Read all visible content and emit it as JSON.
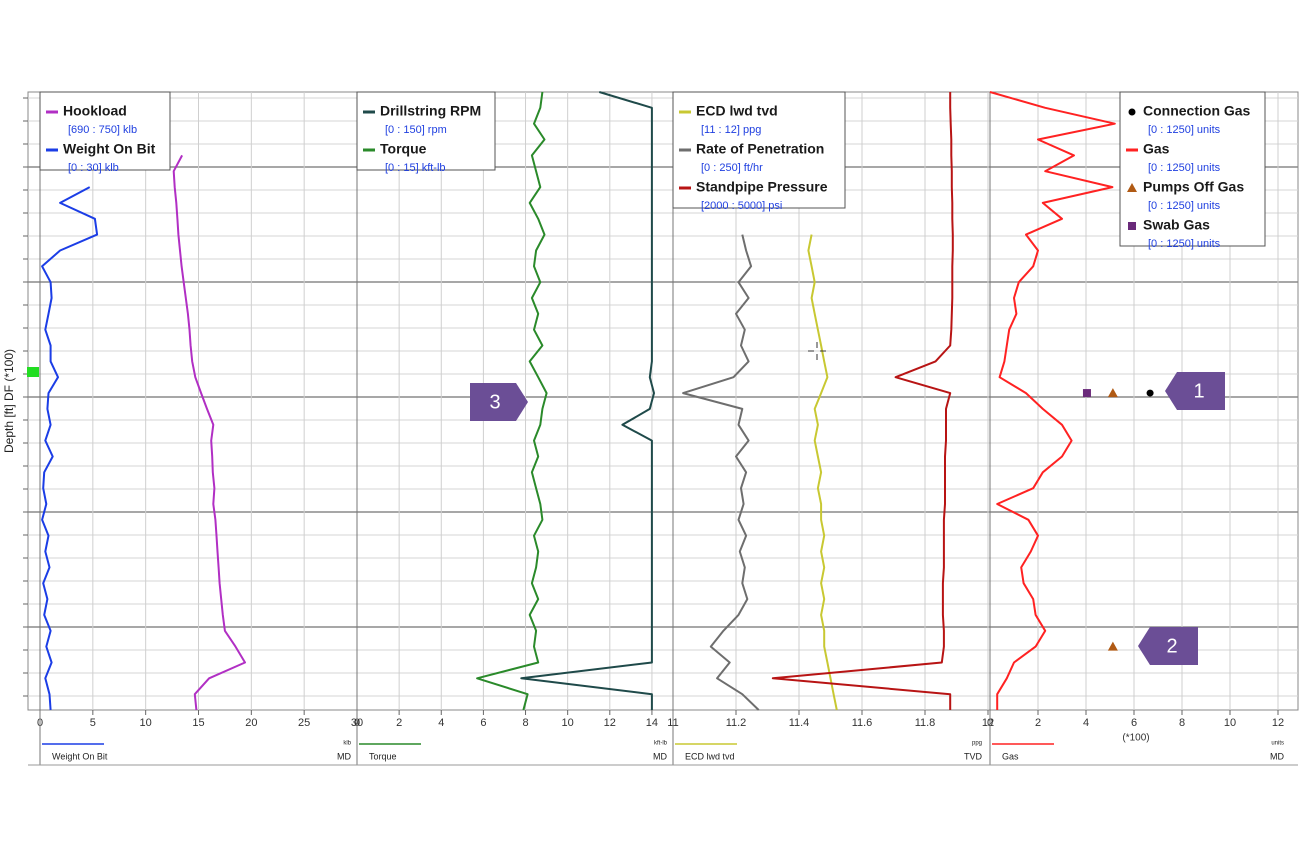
{
  "chart_data": {
    "type": "well-log",
    "y_axis_label": "Depth [ft] DF (*100)",
    "tracks": [
      {
        "xlim": [
          0,
          30
        ],
        "xticks": [
          0,
          5,
          10,
          15,
          20,
          25,
          30
        ],
        "footer": {
          "series": 1,
          "unit": "klb",
          "ref": "MD"
        },
        "series": [
          {
            "name": "Hookload",
            "range": "[690 : 750] klb",
            "color": "#b12fc4",
            "xlim": [
              690,
              750
            ],
            "kind": "line",
            "values": [
              null,
              null,
              null,
              null,
              716.9,
              715.3,
              715.5,
              715.8,
              716,
              716.2,
              716.5,
              716.8,
              717.2,
              717.6,
              718,
              718.3,
              718.5,
              718.8,
              719.4,
              720.5,
              721.6,
              722.8,
              722.4,
              722.6,
              722.7,
              723,
              722.8,
              723.2,
              723.4,
              723.6,
              723.8,
              724,
              724.3,
              724.6,
              725,
              727,
              728.8,
              722,
              719.3,
              719.6
            ]
          },
          {
            "name": "Weight On Bit",
            "range": "[0 : 30] klb",
            "color": "#1b3de6",
            "xlim": [
              0,
              30
            ],
            "kind": "line",
            "values": [
              null,
              null,
              null,
              null,
              null,
              null,
              4.7,
              1.9,
              5.2,
              5.4,
              1.9,
              0.2,
              1.0,
              1.1,
              0.8,
              0.5,
              1.0,
              1.0,
              1.7,
              0.8,
              0.7,
              1.0,
              0.5,
              1.2,
              0.4,
              0.3,
              0.6,
              0.2,
              0.8,
              0.5,
              0.9,
              0.3,
              0.7,
              0.4,
              1.0,
              0.6,
              1.1,
              0.5,
              0.9,
              1.0
            ]
          }
        ]
      },
      {
        "xlim": [
          0,
          15
        ],
        "xticks": [
          0,
          2,
          4,
          6,
          8,
          10,
          12,
          14
        ],
        "footer": {
          "series": 1,
          "unit": "kft-lb",
          "ref": "MD"
        },
        "series": [
          {
            "name": "Drillstring RPM",
            "range": "[0 : 150] rpm",
            "color": "#1f4a4a",
            "xlim": [
              0,
              150
            ],
            "kind": "line",
            "values": [
              115,
              140,
              140,
              140,
              140,
              140,
              140,
              140,
              140,
              140,
              140,
              140,
              140,
              140,
              140,
              140,
              140,
              140,
              139,
              141,
              139,
              126,
              140,
              140,
              140,
              140,
              140,
              140,
              140,
              140,
              140,
              140,
              140,
              140,
              140,
              140,
              140,
              78,
              140,
              140
            ]
          },
          {
            "name": "Torque",
            "range": "[0 : 15] kft-lb",
            "color": "#2a8a2a",
            "xlim": [
              0,
              15
            ],
            "kind": "line",
            "values": [
              8.8,
              8.7,
              8.4,
              8.9,
              8.3,
              8.5,
              8.7,
              8.2,
              8.6,
              8.9,
              8.5,
              8.4,
              8.7,
              8.3,
              8.6,
              8.4,
              8.8,
              8.2,
              8.6,
              9.0,
              8.8,
              8.7,
              8.4,
              8.6,
              8.3,
              8.5,
              8.7,
              8.8,
              8.4,
              8.6,
              8.5,
              8.3,
              8.6,
              8.2,
              8.5,
              8.4,
              8.6,
              5.7,
              8.1,
              7.9
            ]
          }
        ]
      },
      {
        "xlim": [
          11,
          12
        ],
        "xticks": [
          11,
          11.2,
          11.4,
          11.6,
          11.8,
          12
        ],
        "footer": {
          "series": 0,
          "unit": "ppg",
          "ref": "TVD"
        },
        "series": [
          {
            "name": "ECD lwd tvd",
            "range": "[11 : 12] ppg",
            "color": "#c8c832",
            "xlim": [
              11,
              12
            ],
            "kind": "line",
            "values": [
              null,
              null,
              null,
              null,
              null,
              null,
              null,
              null,
              null,
              11.44,
              11.43,
              11.44,
              11.45,
              11.44,
              11.45,
              11.46,
              11.47,
              11.48,
              11.49,
              11.47,
              11.45,
              11.46,
              11.45,
              11.46,
              11.47,
              11.46,
              11.47,
              11.47,
              11.48,
              11.47,
              11.48,
              11.47,
              11.48,
              11.47,
              11.48,
              11.48,
              11.49,
              11.5,
              11.51,
              11.52
            ]
          },
          {
            "name": "Rate of Penetration",
            "range": "[0 : 250] ft/hr",
            "color": "#6e6e6e",
            "xlim": [
              0,
              250
            ],
            "kind": "line",
            "values": [
              null,
              null,
              null,
              null,
              null,
              null,
              null,
              null,
              null,
              55,
              58,
              62,
              52,
              60,
              50,
              57,
              54,
              60,
              48,
              8,
              55,
              52,
              60,
              50,
              58,
              54,
              56,
              52,
              58,
              53,
              57,
              55,
              59,
              52,
              40,
              30,
              45,
              35,
              55,
              68
            ]
          },
          {
            "name": "Standpipe Pressure",
            "range": "[2000 : 5000] psi",
            "color": "#b81414",
            "xlim": [
              2000,
              5000
            ],
            "kind": "line",
            "values": [
              4640,
              4640,
              4645,
              4650,
              4650,
              4655,
              4655,
              4660,
              4660,
              4665,
              4665,
              4660,
              4660,
              4660,
              4655,
              4650,
              4640,
              4500,
              4120,
              4640,
              4600,
              4600,
              4600,
              4590,
              4590,
              4590,
              4590,
              4580,
              4580,
              4580,
              4580,
              4570,
              4570,
              4570,
              4580,
              4580,
              4560,
              2950,
              4640,
              4640
            ]
          }
        ]
      },
      {
        "xlim": [
          0,
          12.5
        ],
        "xticks": [
          0,
          2,
          4,
          6,
          8,
          10,
          12
        ],
        "axis_note": "(*100)",
        "footer": {
          "series": 1,
          "unit": "units",
          "ref": "MD"
        },
        "series": [
          {
            "name": "Connection Gas",
            "range": "[0 : 1250] units",
            "color": "#000000",
            "xlim": [
              0,
              1250
            ],
            "kind": "circle",
            "values": [
              null,
              null,
              null,
              null,
              null,
              null,
              null,
              null,
              null,
              null,
              null,
              null,
              null,
              null,
              null,
              null,
              null,
              null,
              null,
              667,
              null,
              null,
              null,
              null,
              null,
              null,
              null,
              null,
              null,
              null,
              null,
              null,
              null,
              null,
              null,
              null,
              null,
              null,
              null,
              null
            ]
          },
          {
            "name": "Gas",
            "range": "[0 : 1250] units",
            "color": "#ff2222",
            "xlim": [
              0,
              1250
            ],
            "kind": "line",
            "values": [
              0,
              230,
              520,
              200,
              350,
              230,
              510,
              220,
              300,
              150,
              200,
              180,
              120,
              100,
              110,
              80,
              70,
              60,
              40,
              150,
              220,
              300,
              340,
              300,
              220,
              180,
              30,
              160,
              200,
              170,
              130,
              140,
              180,
              190,
              230,
              190,
              100,
              70,
              30,
              30
            ]
          },
          {
            "name": "Pumps Off Gas",
            "range": "[0 : 1250] units",
            "color": "#b05a14",
            "xlim": [
              0,
              1250
            ],
            "kind": "triangle",
            "values": [
              null,
              null,
              null,
              null,
              null,
              null,
              null,
              null,
              null,
              null,
              null,
              null,
              null,
              null,
              null,
              null,
              null,
              null,
              null,
              512,
              null,
              null,
              null,
              null,
              null,
              null,
              null,
              null,
              null,
              null,
              null,
              null,
              null,
              null,
              null,
              512,
              null,
              null,
              null,
              null
            ]
          },
          {
            "name": "Swab Gas",
            "range": "[0 : 1250] units",
            "color": "#6a2a7a",
            "xlim": [
              0,
              1250
            ],
            "kind": "square",
            "values": [
              null,
              null,
              null,
              null,
              null,
              null,
              null,
              null,
              null,
              null,
              null,
              null,
              null,
              null,
              null,
              null,
              null,
              null,
              null,
              404,
              null,
              null,
              null,
              null,
              null,
              null,
              null,
              null,
              null,
              null,
              null,
              null,
              null,
              null,
              null,
              null,
              null,
              null,
              null,
              null
            ]
          }
        ]
      }
    ],
    "callouts": [
      {
        "label": "1"
      },
      {
        "label": "2"
      },
      {
        "label": "3"
      }
    ]
  }
}
